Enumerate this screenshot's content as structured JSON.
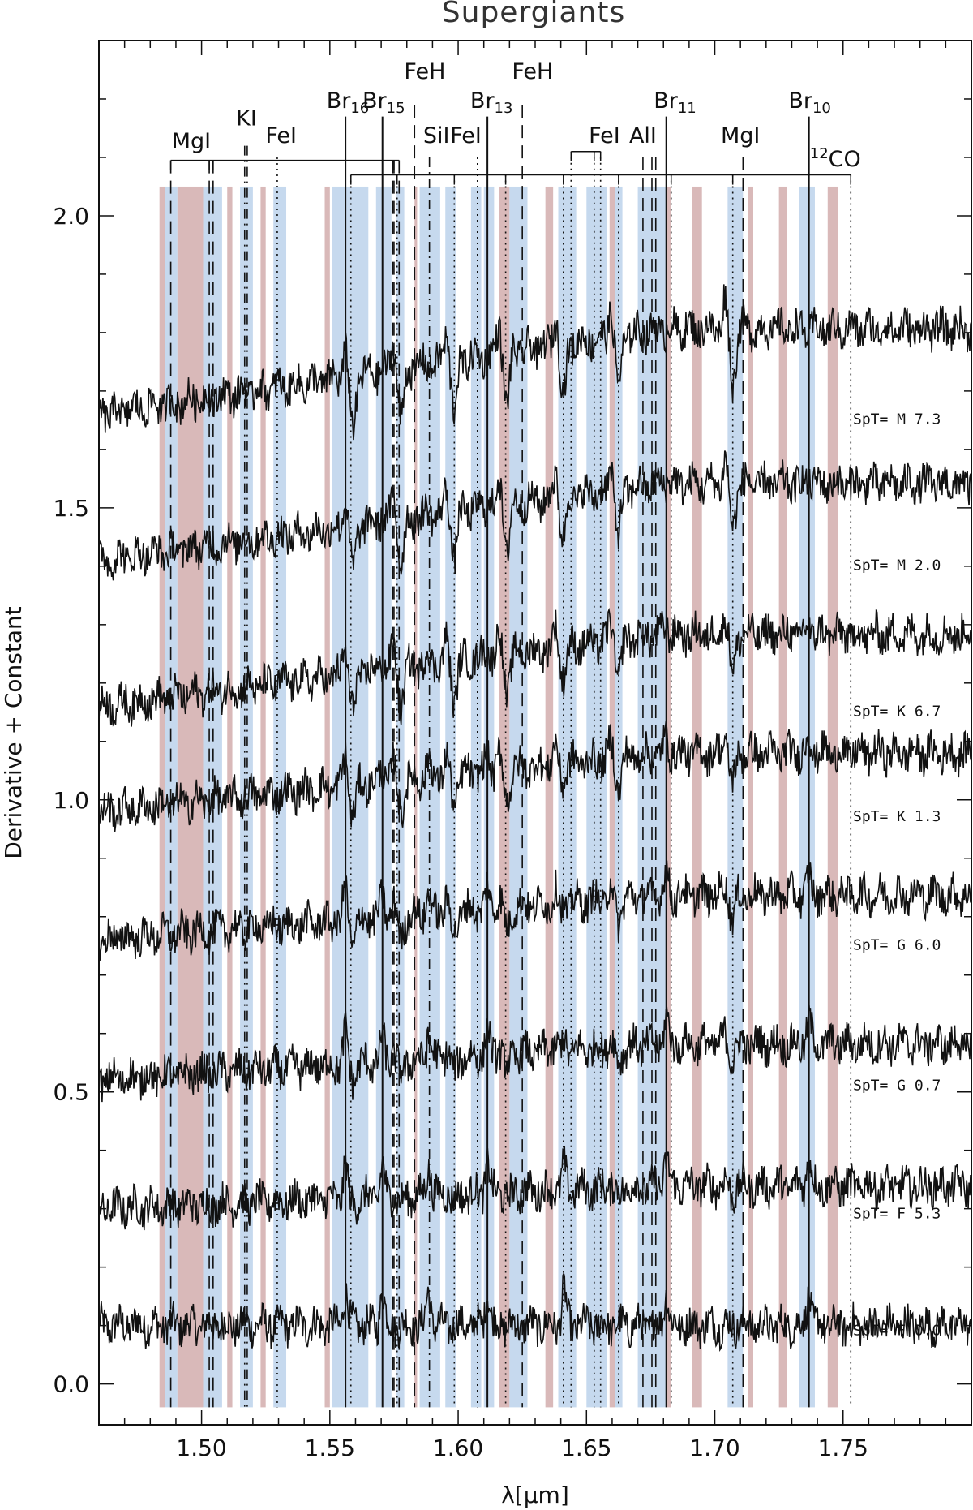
{
  "chart_data": {
    "type": "line",
    "title": "Supergiants",
    "xlabel": "λ[μm]",
    "ylabel": "Derivative + Constant",
    "xlim": [
      1.46,
      1.8
    ],
    "ylim": [
      -0.07,
      2.3
    ],
    "xticks": [
      1.5,
      1.55,
      1.6,
      1.65,
      1.7,
      1.75
    ],
    "xtick_labels": [
      "1.50",
      "1.55",
      "1.60",
      "1.65",
      "1.70",
      "1.75"
    ],
    "yticks": [
      0.0,
      0.5,
      1.0,
      1.5,
      2.0
    ],
    "ytick_labels": [
      "0.0",
      "0.5",
      "1.0",
      "1.5",
      "2.0"
    ],
    "grid": false,
    "series": [
      {
        "name": "SpT= F 0.0",
        "offset": 0.1,
        "slope": 0.0
      },
      {
        "name": "SpT= F 5.3",
        "offset": 0.3,
        "slope": 0.25
      },
      {
        "name": "SpT= G 0.7",
        "offset": 0.52,
        "slope": 0.4
      },
      {
        "name": "SpT= G 6.0",
        "offset": 0.76,
        "slope": 0.5
      },
      {
        "name": "SpT= K 1.3",
        "offset": 0.98,
        "slope": 0.65
      },
      {
        "name": "SpT= K 6.7",
        "offset": 1.16,
        "slope": 0.8
      },
      {
        "name": "SpT= M 2.0",
        "offset": 1.41,
        "slope": 0.85
      },
      {
        "name": "SpT= M 7.3",
        "offset": 1.66,
        "slope": 0.95
      }
    ],
    "bands": [
      {
        "start": 1.4836,
        "end": 1.4856,
        "color": "#d9b9b9"
      },
      {
        "start": 1.4856,
        "end": 1.4906,
        "color": "#c6d9ee"
      },
      {
        "start": 1.4906,
        "end": 1.5006,
        "color": "#d9b9b9"
      },
      {
        "start": 1.5006,
        "end": 1.508,
        "color": "#c6d9ee"
      },
      {
        "start": 1.51,
        "end": 1.512,
        "color": "#d9b9b9"
      },
      {
        "start": 1.515,
        "end": 1.52,
        "color": "#c6d9ee"
      },
      {
        "start": 1.523,
        "end": 1.525,
        "color": "#d9b9b9"
      },
      {
        "start": 1.528,
        "end": 1.533,
        "color": "#c6d9ee"
      },
      {
        "start": 1.548,
        "end": 1.55,
        "color": "#d9b9b9"
      },
      {
        "start": 1.551,
        "end": 1.565,
        "color": "#c6d9ee"
      },
      {
        "start": 1.568,
        "end": 1.574,
        "color": "#c6d9ee"
      },
      {
        "start": 1.576,
        "end": 1.579,
        "color": "#c6d9ee"
      },
      {
        "start": 1.583,
        "end": 1.584,
        "color": "#d9b9b9"
      },
      {
        "start": 1.585,
        "end": 1.593,
        "color": "#c6d9ee"
      },
      {
        "start": 1.595,
        "end": 1.599,
        "color": "#c6d9ee"
      },
      {
        "start": 1.605,
        "end": 1.609,
        "color": "#c6d9ee"
      },
      {
        "start": 1.61,
        "end": 1.614,
        "color": "#c6d9ee"
      },
      {
        "start": 1.616,
        "end": 1.62,
        "color": "#d9b9b9"
      },
      {
        "start": 1.62,
        "end": 1.627,
        "color": "#c6d9ee"
      },
      {
        "start": 1.634,
        "end": 1.637,
        "color": "#d9b9b9"
      },
      {
        "start": 1.639,
        "end": 1.646,
        "color": "#c6d9ee"
      },
      {
        "start": 1.65,
        "end": 1.658,
        "color": "#c6d9ee"
      },
      {
        "start": 1.659,
        "end": 1.661,
        "color": "#d9b9b9"
      },
      {
        "start": 1.661,
        "end": 1.664,
        "color": "#c6d9ee"
      },
      {
        "start": 1.67,
        "end": 1.681,
        "color": "#c6d9ee"
      },
      {
        "start": 1.681,
        "end": 1.683,
        "color": "#d9b9b9"
      },
      {
        "start": 1.691,
        "end": 1.695,
        "color": "#d9b9b9"
      },
      {
        "start": 1.705,
        "end": 1.711,
        "color": "#c6d9ee"
      },
      {
        "start": 1.713,
        "end": 1.715,
        "color": "#d9b9b9"
      },
      {
        "start": 1.725,
        "end": 1.728,
        "color": "#d9b9b9"
      },
      {
        "start": 1.733,
        "end": 1.739,
        "color": "#c6d9ee"
      },
      {
        "start": 1.744,
        "end": 1.748,
        "color": "#d9b9b9"
      }
    ],
    "lines": [
      {
        "name": "MgI",
        "x": 1.488,
        "style": "long-dash"
      },
      {
        "name": "MgI",
        "x": 1.503,
        "style": "long-dash"
      },
      {
        "name": "MgI",
        "x": 1.5045,
        "style": "long-dash"
      },
      {
        "name": "KI",
        "x": 1.5168,
        "style": "dash-dot"
      },
      {
        "name": "KI",
        "x": 1.5178,
        "style": "dash-dot"
      },
      {
        "name": "FeI",
        "x": 1.5295,
        "style": "dot"
      },
      {
        "name": "Br16",
        "x": 1.5561,
        "style": "solid"
      },
      {
        "name": "12CO",
        "x": 1.5582,
        "style": "dot"
      },
      {
        "name": "Br15",
        "x": 1.5705,
        "style": "solid"
      },
      {
        "name": "MgI",
        "x": 1.5745,
        "style": "long-dash"
      },
      {
        "name": "MgI",
        "x": 1.575,
        "style": "long-dash"
      },
      {
        "name": "MgI",
        "x": 1.577,
        "style": "long-dash"
      },
      {
        "name": "12CO",
        "x": 1.5762,
        "style": "dot"
      },
      {
        "name": "FeH",
        "x": 1.583,
        "style": "long-dash"
      },
      {
        "name": "SiI",
        "x": 1.5888,
        "style": "dash-dot"
      },
      {
        "name": "12CO",
        "x": 1.5985,
        "style": "dot"
      },
      {
        "name": "FeI",
        "x": 1.6075,
        "style": "dot"
      },
      {
        "name": "Br13",
        "x": 1.6114,
        "style": "solid"
      },
      {
        "name": "12CO",
        "x": 1.6185,
        "style": "dot"
      },
      {
        "name": "FeH",
        "x": 1.625,
        "style": "long-dash"
      },
      {
        "name": "FeI",
        "x": 1.644,
        "style": "dot"
      },
      {
        "name": "12CO",
        "x": 1.641,
        "style": "dot"
      },
      {
        "name": "FeI",
        "x": 1.653,
        "style": "dot"
      },
      {
        "name": "FeI",
        "x": 1.6555,
        "style": "dot"
      },
      {
        "name": "12CO",
        "x": 1.6625,
        "style": "dot"
      },
      {
        "name": "AlI",
        "x": 1.672,
        "style": "long-dash"
      },
      {
        "name": "AlI",
        "x": 1.6755,
        "style": "long-dash"
      },
      {
        "name": "AlI",
        "x": 1.677,
        "style": "long-dash"
      },
      {
        "name": "Br11",
        "x": 1.6811,
        "style": "solid"
      },
      {
        "name": "12CO",
        "x": 1.683,
        "style": "dot"
      },
      {
        "name": "MgI",
        "x": 1.711,
        "style": "long-dash"
      },
      {
        "name": "12CO",
        "x": 1.707,
        "style": "dot"
      },
      {
        "name": "Br10",
        "x": 1.7367,
        "style": "solid"
      },
      {
        "name": "12CO",
        "x": 1.753,
        "style": "dot"
      }
    ],
    "line_labels": [
      {
        "text": "MgI",
        "x": 1.496,
        "y_level": 2.115
      },
      {
        "text": "KI",
        "x": 1.5175,
        "y_level": 2.155
      },
      {
        "text": "FeI",
        "x": 1.531,
        "y_level": 2.125
      },
      {
        "text": "Br",
        "sub": "16",
        "x": 1.557,
        "y_level": 2.185
      },
      {
        "text": "Br",
        "sub": "15",
        "x": 1.571,
        "y_level": 2.185
      },
      {
        "text": "FeH",
        "x": 1.587,
        "y_level": 2.235
      },
      {
        "text": "SiI",
        "x": 1.5915,
        "y_level": 2.125
      },
      {
        "text": "FeI",
        "x": 1.603,
        "y_level": 2.125
      },
      {
        "text": "Br",
        "sub": "13",
        "x": 1.613,
        "y_level": 2.185
      },
      {
        "text": "FeH",
        "x": 1.629,
        "y_level": 2.235
      },
      {
        "text": "FeI",
        "x": 1.657,
        "y_level": 2.125
      },
      {
        "text": "AlI",
        "x": 1.672,
        "y_level": 2.125
      },
      {
        "text": "Br",
        "sub": "11",
        "x": 1.6845,
        "y_level": 2.185
      },
      {
        "text": "MgI",
        "x": 1.71,
        "y_level": 2.125
      },
      {
        "text": "Br",
        "sub": "10",
        "x": 1.737,
        "y_level": 2.185
      },
      {
        "text": "CO",
        "sup": "12",
        "x": 1.747,
        "y_level": 2.085
      }
    ],
    "brackets": [
      {
        "x1": 1.488,
        "x2": 1.577,
        "y_level": 2.095,
        "ticks": [
          1.488,
          1.503,
          1.5045,
          1.5745,
          1.575,
          1.577
        ]
      },
      {
        "x1": 1.5582,
        "x2": 1.753,
        "y_level": 2.07,
        "ticks": [
          1.5582,
          1.5762,
          1.5985,
          1.6185,
          1.641,
          1.6625,
          1.683,
          1.707,
          1.753
        ]
      },
      {
        "x1": 1.644,
        "x2": 1.6555,
        "y_level": 2.11,
        "ticks": [
          1.644,
          1.653,
          1.6555
        ]
      }
    ]
  }
}
